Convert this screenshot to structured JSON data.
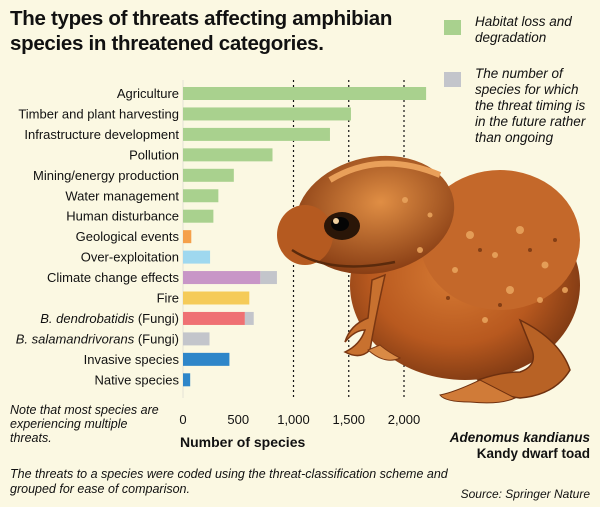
{
  "title": "The types of threats affecting amphibian species in threatened categories.",
  "legend": [
    {
      "label": "Habitat loss and degradation",
      "color": "#a9d18e"
    },
    {
      "label": "The number of species for which the threat timing is in the future rather than ongoing",
      "color": "#c3c5cb"
    }
  ],
  "note": "Note that most species are experiencing multiple threats.",
  "footnote": "The threats to a species were coded using the threat-classification scheme and grouped for ease of comparison.",
  "photo_caption": {
    "line1": "Adenomus kandianus",
    "line2": "Kandy dwarf toad"
  },
  "source": "Source: Springer Nature",
  "chart_data": {
    "type": "bar",
    "orientation": "horizontal",
    "title": "The types of threats affecting amphibian species in threatened categories.",
    "xlabel": "Number of species",
    "xlim": [
      0,
      2200
    ],
    "xticks": [
      0,
      500,
      1000,
      1500,
      2000
    ],
    "xtick_labels": [
      "0",
      "500",
      "1,000",
      "1,500",
      "2,000"
    ],
    "grid": "dashed vertical lines at 1,000, 1,500, 2,000",
    "categories": [
      {
        "label": "Agriculture",
        "value": 2200,
        "future": 0,
        "color": "#a9d18e",
        "italic_part": ""
      },
      {
        "label": "Timber and plant harvesting",
        "value": 1520,
        "future": 0,
        "color": "#a9d18e",
        "italic_part": ""
      },
      {
        "label": "Infrastructure development",
        "value": 1330,
        "future": 0,
        "color": "#a9d18e",
        "italic_part": ""
      },
      {
        "label": "Pollution",
        "value": 810,
        "future": 0,
        "color": "#a9d18e",
        "italic_part": ""
      },
      {
        "label": "Mining/energy production",
        "value": 460,
        "future": 0,
        "color": "#a9d18e",
        "italic_part": ""
      },
      {
        "label": "Water management",
        "value": 320,
        "future": 0,
        "color": "#a9d18e",
        "italic_part": ""
      },
      {
        "label": "Human disturbance",
        "value": 275,
        "future": 0,
        "color": "#a9d18e",
        "italic_part": ""
      },
      {
        "label": "Geological events",
        "value": 75,
        "future": 0,
        "color": "#f5a04a",
        "italic_part": ""
      },
      {
        "label": "Over-exploitation",
        "value": 245,
        "future": 0,
        "color": "#9fd8ef",
        "italic_part": ""
      },
      {
        "label": "Climate change effects",
        "value": 700,
        "future": 150,
        "color": "#c896c7",
        "italic_part": ""
      },
      {
        "label": "Fire",
        "value": 600,
        "future": 0,
        "color": "#f5cb58",
        "italic_part": ""
      },
      {
        "label": " (Fungi)",
        "value": 560,
        "future": 80,
        "color": "#ef7173",
        "italic_part": "B. dendrobatidis"
      },
      {
        "label": " (Fungi)",
        "value": 0,
        "future": 240,
        "color": "#c3c5cb",
        "italic_part": "B. salamandrivorans"
      },
      {
        "label": "Invasive species",
        "value": 420,
        "future": 0,
        "color": "#2e86c9",
        "italic_part": ""
      },
      {
        "label": "Native species",
        "value": 65,
        "future": 0,
        "color": "#2e86c9",
        "italic_part": ""
      }
    ]
  }
}
